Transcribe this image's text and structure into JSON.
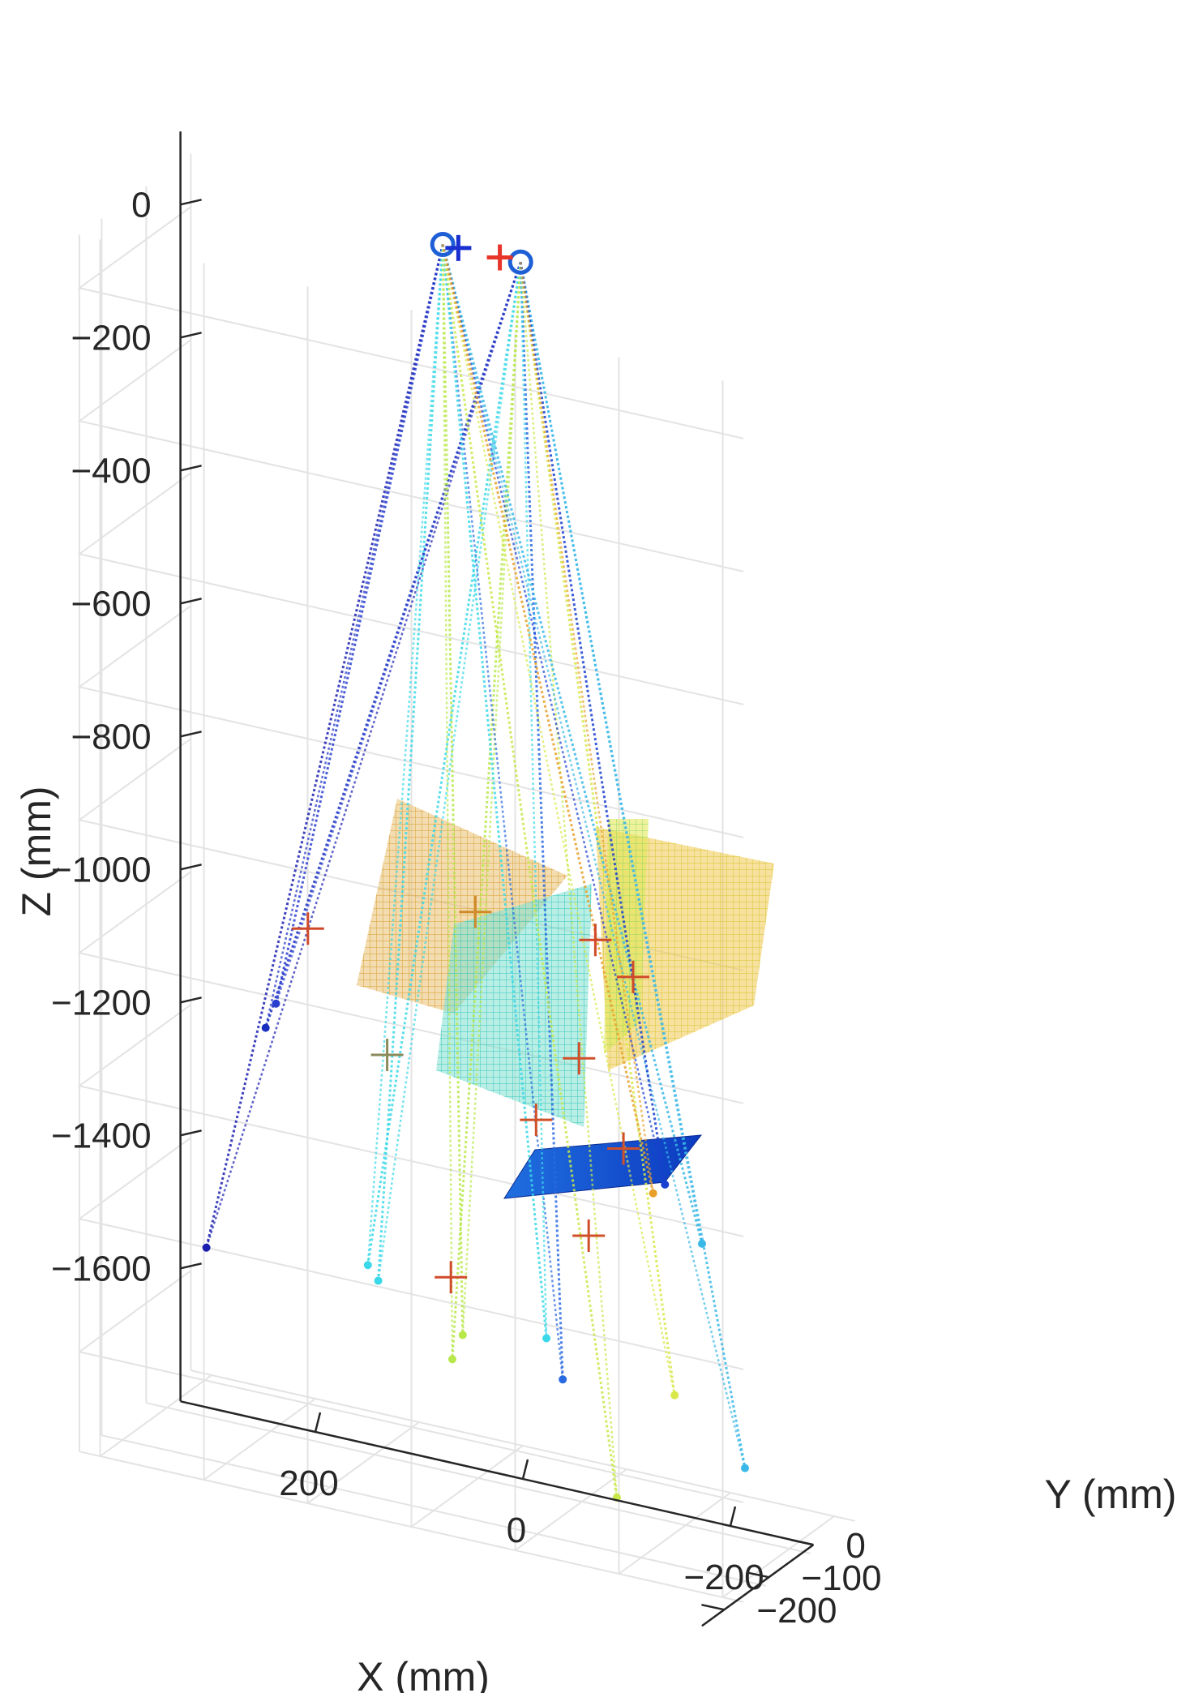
{
  "chart_data": {
    "type": "scatter3d",
    "xlabel": "X (mm)",
    "ylabel": "Y (mm)",
    "zlabel": "Z (mm)",
    "z_ticks": [
      {
        "value": 0,
        "label": "0"
      },
      {
        "value": -200,
        "label": "−200"
      },
      {
        "value": -400,
        "label": "−400"
      },
      {
        "value": -600,
        "label": "−600"
      },
      {
        "value": -800,
        "label": "−800"
      },
      {
        "value": -1000,
        "label": "−1000"
      },
      {
        "value": -1200,
        "label": "−1200"
      },
      {
        "value": -1400,
        "label": "−1400"
      },
      {
        "value": -1600,
        "label": "−1600"
      }
    ],
    "x_ticks": [
      {
        "value": 200,
        "label": "200"
      },
      {
        "value": 0,
        "label": "0"
      },
      {
        "value": -200,
        "label": "−200"
      }
    ],
    "y_ticks": [
      {
        "value": -200,
        "label": "−200"
      },
      {
        "value": -100,
        "label": "−100"
      },
      {
        "value": 0,
        "label": "0"
      }
    ],
    "zlim": [
      -1750,
      80
    ],
    "grid": true,
    "colormap": "jet",
    "cameras": [
      {
        "x": 60,
        "y": -40,
        "z": 55,
        "marker": "o",
        "color": "#1f5fd6"
      },
      {
        "x": -15,
        "y": -40,
        "z": 55,
        "marker": "o",
        "color": "#1f5fd6"
      }
    ],
    "camera_centers": [
      {
        "x": 45,
        "y": -40,
        "z": 55,
        "marker": "+",
        "color": "#1a2fd0"
      },
      {
        "x": 5,
        "y": -40,
        "z": 55,
        "marker": "+",
        "color": "#e8352a"
      }
    ],
    "ray_endpoints": [
      {
        "x": 305,
        "y": 0,
        "z": -1560,
        "color": "#1a1fb0"
      },
      {
        "x": 235,
        "y": -30,
        "z": -1190,
        "color": "#1a2fc0"
      },
      {
        "x": 225,
        "y": -30,
        "z": -1150,
        "color": "#2a3fd0"
      },
      {
        "x": 115,
        "y": -80,
        "z": -1480,
        "color": "#3ad8e8"
      },
      {
        "x": 105,
        "y": -80,
        "z": -1500,
        "color": "#3ad8e8"
      },
      {
        "x": 25,
        "y": -100,
        "z": -1580,
        "color": "#b8e84a"
      },
      {
        "x": 15,
        "y": -100,
        "z": -1540,
        "color": "#b8e84a"
      },
      {
        "x": -90,
        "y": -120,
        "z": -1560,
        "color": "#2a6ae0"
      },
      {
        "x": -70,
        "y": -110,
        "z": -1510,
        "color": "#3ad8e8"
      },
      {
        "x": -215,
        "y": -160,
        "z": -1520,
        "color": "#d8e84a"
      },
      {
        "x": -155,
        "y": -150,
        "z": -1700,
        "color": "#c8e84a"
      },
      {
        "x": -300,
        "y": -200,
        "z": -1580,
        "color": "#3ab8e8"
      },
      {
        "x": -250,
        "y": -180,
        "z": -1270,
        "color": "#3ab8e8"
      },
      {
        "x": -210,
        "y": -170,
        "z": -1200,
        "color": "#1a3fd0"
      },
      {
        "x": -190,
        "y": -150,
        "z": -1230,
        "color": "#e8a02a"
      }
    ],
    "intersection_markers": [
      {
        "x": 190,
        "y": -40,
        "z": -1020,
        "color": "#d04a2a"
      },
      {
        "x": 20,
        "y": -60,
        "z": -925,
        "color": "#d08a2a"
      },
      {
        "x": -130,
        "y": -140,
        "z": -875,
        "color": "#d04a2a"
      },
      {
        "x": -175,
        "y": -160,
        "z": -905,
        "color": "#d04a2a"
      },
      {
        "x": -110,
        "y": -130,
        "z": -1065,
        "color": "#d0502a"
      },
      {
        "x": 105,
        "y": -60,
        "z": -1170,
        "color": "#8a8a5a"
      },
      {
        "x": -60,
        "y": -110,
        "z": -1185,
        "color": "#d0502a"
      },
      {
        "x": -170,
        "y": -170,
        "z": -1160,
        "color": "#d0502a"
      },
      {
        "x": -115,
        "y": -120,
        "z": -1335,
        "color": "#d0502a"
      },
      {
        "x": 35,
        "y": -80,
        "z": -1470,
        "color": "#d04a2a"
      }
    ]
  }
}
